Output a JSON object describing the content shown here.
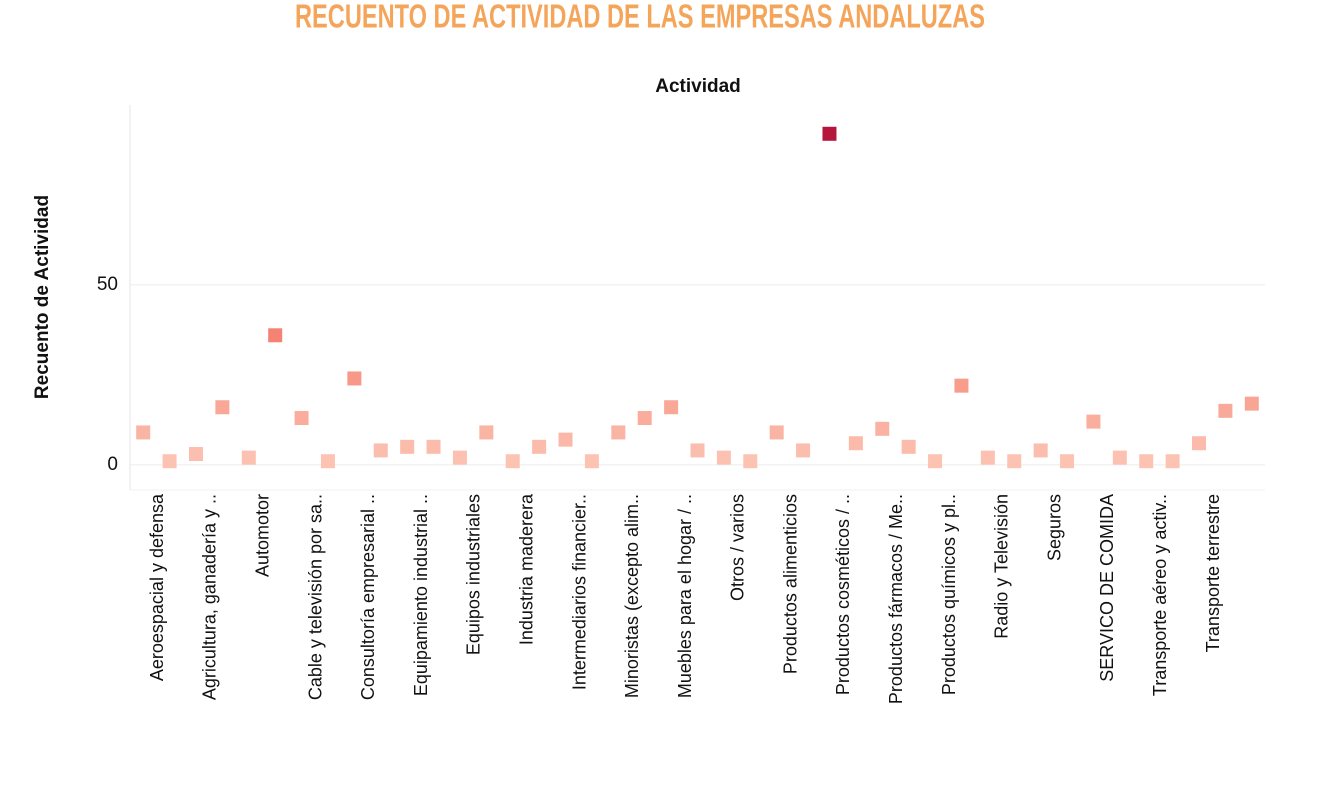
{
  "chart_data": {
    "type": "scatter",
    "title": "RECUENTO DE ACTIVIDAD DE LAS EMPRESAS ANDALUZAS",
    "column_header": "Actividad",
    "y_label": "Recuento de Actividad",
    "categories": [
      "Aeroespacial y defensa",
      null,
      "Agricultura, ganadería y ..",
      null,
      "Automotor",
      null,
      "Cable y televisión por sa..",
      null,
      "Consultoría empresarial ..",
      null,
      "Equipamiento industrial ..",
      null,
      "Equipos industriales",
      null,
      "Industria maderera",
      null,
      "Intermediarios financier..",
      null,
      "Minoristas (excepto alim..",
      null,
      "Muebles para el hogar / ..",
      null,
      "Otros / varios",
      null,
      "Productos alimenticios",
      null,
      "Productos cosméticos / ..",
      null,
      "Productos fármacos / Me..",
      null,
      "Productos químicos y pl..",
      null,
      "Radio y Televisión",
      null,
      "Seguros",
      null,
      "SERVICO DE COMIDA",
      null,
      "Transporte aéreo y activ..",
      null,
      "Transporte terrestre",
      null,
      null
    ],
    "values": [
      9,
      1,
      3,
      16,
      2,
      36,
      13,
      1,
      24,
      4,
      5,
      5,
      2,
      9,
      1,
      5,
      7,
      1,
      9,
      13,
      16,
      4,
      2,
      1,
      9,
      4,
      92,
      6,
      10,
      5,
      1,
      22,
      2,
      1,
      4,
      1,
      12,
      2,
      1,
      1,
      6,
      15,
      17
    ],
    "color_scale": [
      "#fcc3b3",
      "#f36e5e",
      "#b5173c"
    ],
    "ylim": [
      -7,
      100
    ],
    "yticks": [
      0,
      50
    ],
    "grid": true
  }
}
